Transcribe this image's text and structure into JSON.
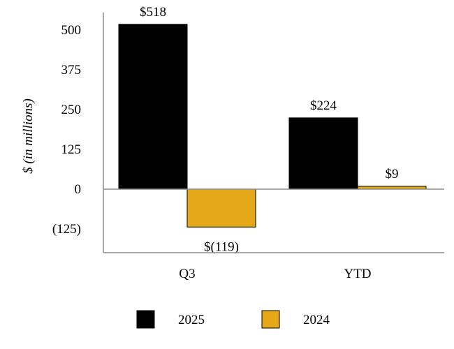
{
  "chart_data": {
    "type": "bar",
    "categories": [
      "Q3",
      "YTD"
    ],
    "series": [
      {
        "name": "2025",
        "values": [
          518,
          224
        ],
        "labels": [
          "$518",
          "$224"
        ],
        "color": "#000000"
      },
      {
        "name": "2024",
        "values": [
          -119,
          9
        ],
        "labels": [
          "$(119)",
          "$9"
        ],
        "color": "#E5A818"
      }
    ],
    "ylabel": "$ (in millions)",
    "ylim": [
      -200,
      560
    ],
    "yticks": [
      {
        "value": 500,
        "label": "500"
      },
      {
        "value": 375,
        "label": "375"
      },
      {
        "value": 250,
        "label": "250"
      },
      {
        "value": 125,
        "label": "125"
      },
      {
        "value": 0,
        "label": "0"
      },
      {
        "value": -125,
        "label": "(125)"
      }
    ],
    "grid": false,
    "legend": "bottom-center"
  }
}
